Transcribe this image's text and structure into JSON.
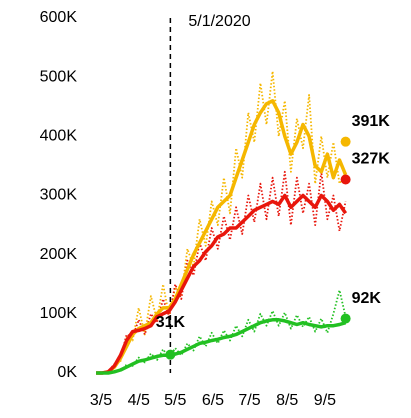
{
  "chart_data": {
    "type": "line",
    "annotation_line": "5/1/2020",
    "x": [
      "3/1",
      "3/6",
      "3/11",
      "3/16",
      "3/21",
      "3/26",
      "3/31",
      "4/5",
      "4/10",
      "4/15",
      "4/20",
      "4/25",
      "4/30",
      "5/5",
      "5/10",
      "5/15",
      "5/20",
      "5/25",
      "5/30",
      "6/4",
      "6/9",
      "6/14",
      "6/19",
      "6/24",
      "6/29",
      "7/4",
      "7/9",
      "7/14",
      "7/19",
      "7/24",
      "7/29",
      "8/3",
      "8/8",
      "8/13",
      "8/18",
      "8/23",
      "8/28",
      "9/2",
      "9/7",
      "9/12",
      "9/17",
      "9/22"
    ],
    "xticks": [
      "3/5",
      "4/5",
      "5/5",
      "6/5",
      "7/5",
      "8/5",
      "9/5"
    ],
    "ylim": [
      0,
      600000
    ],
    "yticks": [
      {
        "value": 0,
        "label": "0K"
      },
      {
        "value": 100000,
        "label": "100K"
      },
      {
        "value": 200000,
        "label": "200K"
      },
      {
        "value": 300000,
        "label": "300K"
      },
      {
        "value": 400000,
        "label": "400K"
      },
      {
        "value": 500000,
        "label": "500K"
      },
      {
        "value": 600000,
        "label": "600K"
      }
    ],
    "series": [
      {
        "color": "#f5b700",
        "style": "dotted",
        "values": [
          0,
          0,
          3000,
          14000,
          20000,
          60000,
          55000,
          110000,
          65000,
          130000,
          90000,
          150000,
          95000,
          145000,
          130000,
          210000,
          180000,
          260000,
          215000,
          290000,
          250000,
          330000,
          270000,
          380000,
          330000,
          440000,
          390000,
          490000,
          420000,
          510000,
          400000,
          460000,
          340000,
          430000,
          380000,
          470000,
          320000,
          400000,
          330000,
          390000,
          320000,
          340000
        ]
      },
      {
        "color": "#e8160c",
        "style": "dotted",
        "values": [
          0,
          0,
          3000,
          15000,
          25000,
          65000,
          60000,
          90000,
          65000,
          100000,
          85000,
          125000,
          95000,
          150000,
          125000,
          190000,
          165000,
          220000,
          190000,
          245000,
          210000,
          265000,
          225000,
          280000,
          235000,
          300000,
          255000,
          320000,
          260000,
          330000,
          265000,
          340000,
          250000,
          330000,
          270000,
          320000,
          250000,
          340000,
          260000,
          300000,
          240000,
          290000
        ]
      },
      {
        "color": "#22c022",
        "style": "dotted",
        "values": [
          0,
          0,
          0,
          3000,
          4000,
          14000,
          12000,
          26000,
          18000,
          33000,
          22000,
          40000,
          25000,
          42000,
          30000,
          50000,
          38000,
          62000,
          45000,
          68000,
          50000,
          72000,
          55000,
          80000,
          62000,
          90000,
          70000,
          100000,
          80000,
          105000,
          80000,
          102000,
          75000,
          98000,
          78000,
          95000,
          70000,
          92000,
          68000,
          100000,
          140000,
          95000
        ]
      },
      {
        "color": "#f5b700",
        "style": "solid",
        "values": [
          0,
          0,
          2000,
          10000,
          25000,
          45000,
          65000,
          75000,
          80000,
          85000,
          100000,
          110000,
          110000,
          125000,
          150000,
          175000,
          200000,
          220000,
          240000,
          260000,
          280000,
          290000,
          300000,
          330000,
          360000,
          390000,
          420000,
          440000,
          455000,
          460000,
          440000,
          400000,
          370000,
          390000,
          420000,
          400000,
          350000,
          340000,
          370000,
          330000,
          360000,
          335000
        ]
      },
      {
        "color": "#e8160c",
        "style": "solid",
        "values": [
          0,
          0,
          2000,
          12000,
          30000,
          55000,
          70000,
          72000,
          75000,
          80000,
          95000,
          100000,
          105000,
          120000,
          140000,
          160000,
          180000,
          190000,
          205000,
          215000,
          230000,
          235000,
          245000,
          245000,
          255000,
          265000,
          275000,
          280000,
          285000,
          290000,
          285000,
          300000,
          280000,
          290000,
          300000,
          290000,
          280000,
          300000,
          290000,
          275000,
          285000,
          270000
        ]
      },
      {
        "color": "#22c022",
        "style": "solid",
        "values": [
          0,
          0,
          0,
          2000,
          5000,
          10000,
          15000,
          20000,
          22000,
          25000,
          28000,
          30000,
          30000,
          32000,
          35000,
          40000,
          45000,
          50000,
          52000,
          55000,
          57000,
          60000,
          62000,
          65000,
          70000,
          75000,
          80000,
          85000,
          88000,
          90000,
          90000,
          88000,
          85000,
          82000,
          85000,
          82000,
          80000,
          78000,
          80000,
          80000,
          82000,
          85000
        ]
      }
    ],
    "points": [
      {
        "x": "5/1",
        "value": 31000,
        "label": "31K",
        "color": "#22c022",
        "position": "above"
      },
      {
        "x": "9/22",
        "value": 391000,
        "label": "391K",
        "color": "#f5b700",
        "position": "right"
      },
      {
        "x": "9/22",
        "value": 327000,
        "label": "327K",
        "color": "#e8160c",
        "position": "right"
      },
      {
        "x": "9/22",
        "value": 92000,
        "label": "92K",
        "color": "#22c022",
        "position": "right"
      }
    ]
  }
}
